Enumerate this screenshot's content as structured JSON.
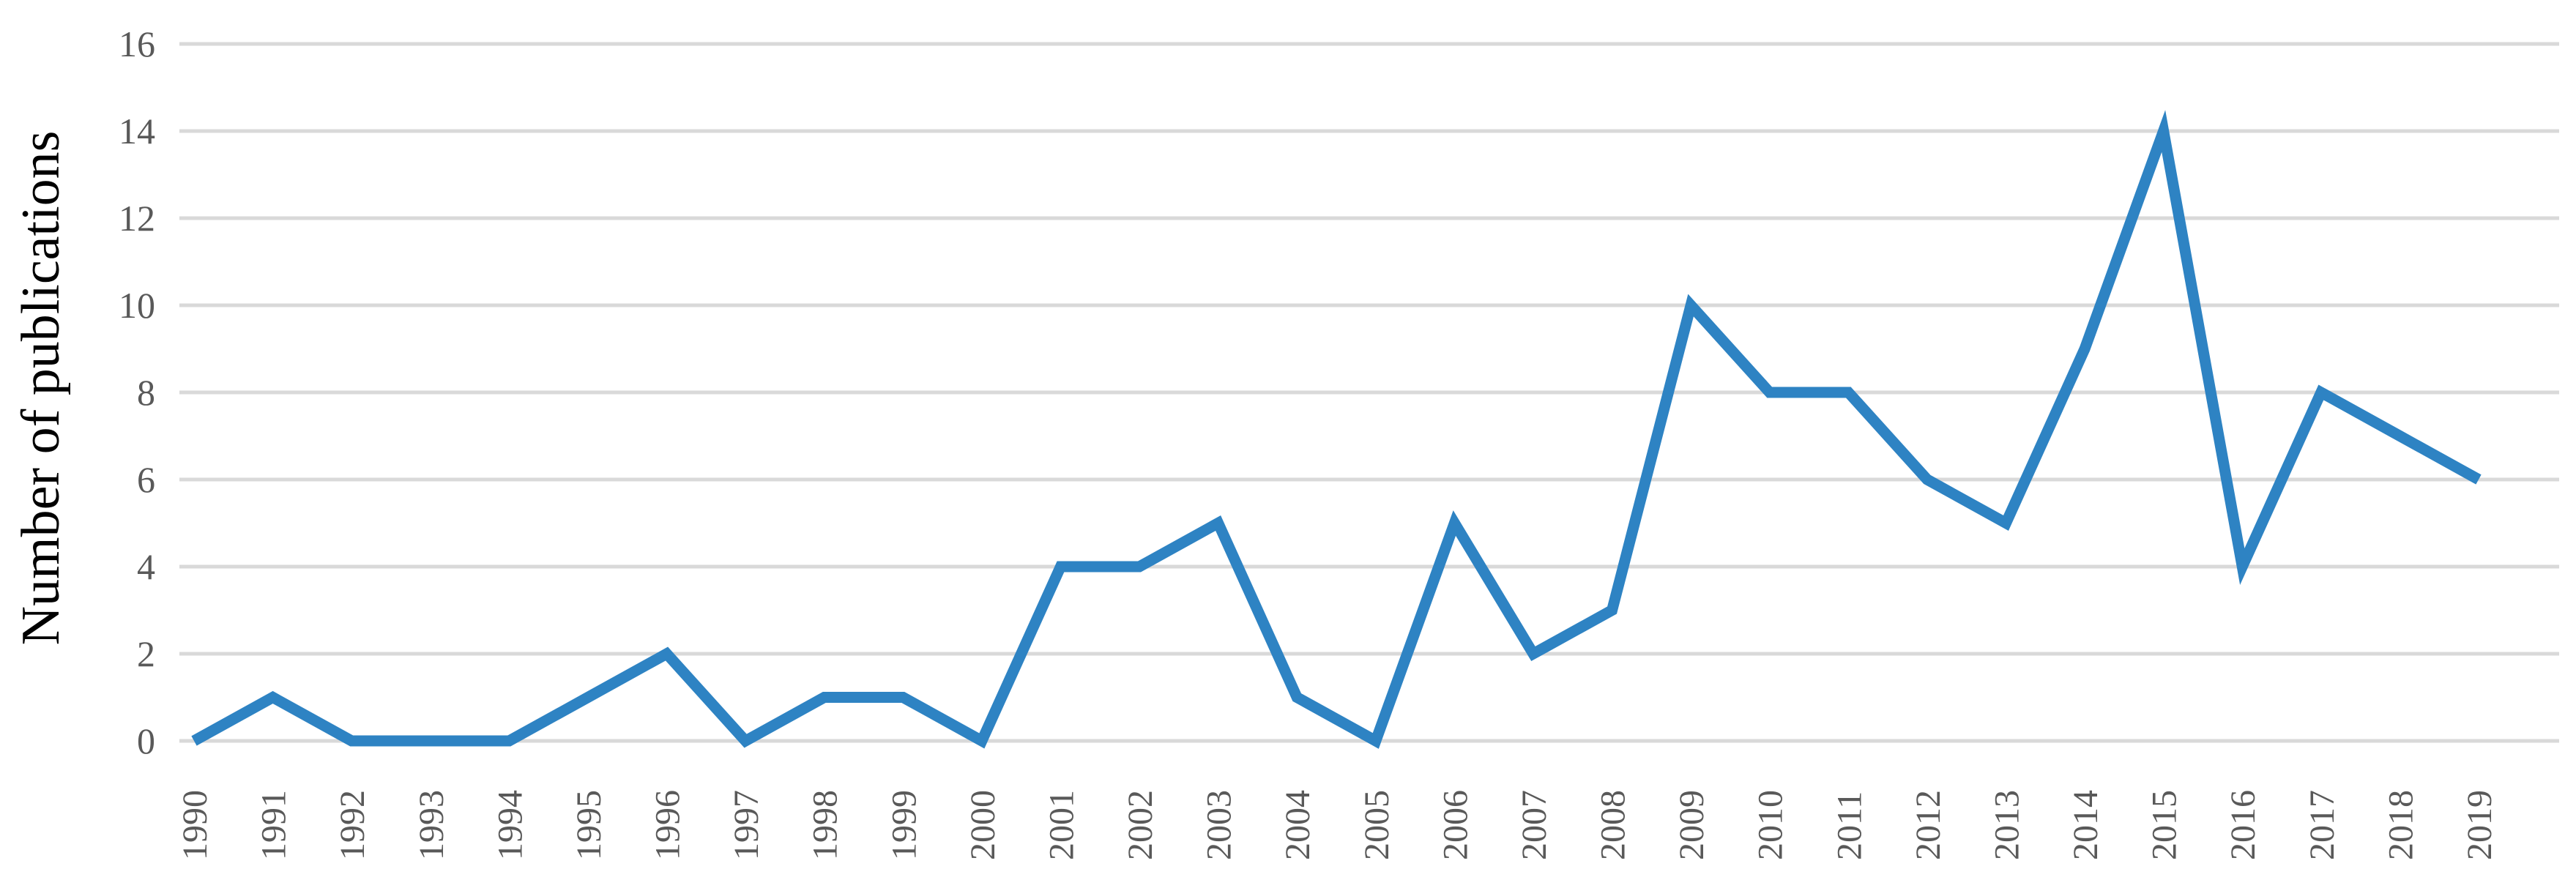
{
  "chart_data": {
    "type": "line",
    "title": "",
    "xlabel": "",
    "ylabel": "Number of publications",
    "ylim": [
      0,
      16
    ],
    "yticks": [
      "0",
      "2",
      "4",
      "6",
      "8",
      "10",
      "12",
      "14",
      "16"
    ],
    "grid": true,
    "legend": "none",
    "categories": [
      "1990",
      "1991",
      "1992",
      "1993",
      "1994",
      "1995",
      "1996",
      "1997",
      "1998",
      "1999",
      "2000",
      "2001",
      "2002",
      "2003",
      "2004",
      "2005",
      "2006",
      "2007",
      "2008",
      "2009",
      "2010",
      "2011",
      "2012",
      "2013",
      "2014",
      "2015",
      "2016",
      "2017",
      "2018",
      "2019"
    ],
    "series": [
      {
        "color": "#2e83c3",
        "values": [
          0,
          1,
          0,
          0,
          0,
          1,
          2,
          0,
          1,
          1,
          0,
          4,
          4,
          5,
          1,
          0,
          5,
          2,
          3,
          10,
          8,
          8,
          6,
          5,
          9,
          14,
          4,
          8,
          7,
          6
        ]
      }
    ]
  }
}
